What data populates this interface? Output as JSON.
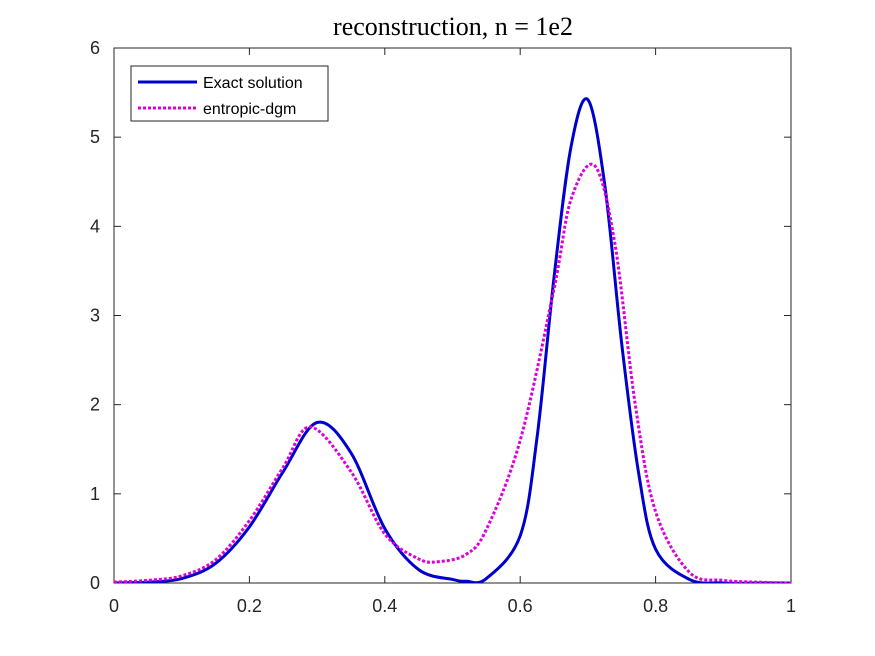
{
  "chart_data": {
    "type": "line",
    "title": "reconstruction, n = 1e2",
    "xlabel": "",
    "ylabel": "",
    "xlim": [
      0,
      1
    ],
    "ylim": [
      0,
      6
    ],
    "x_ticks": [
      0,
      0.2,
      0.4,
      0.6,
      0.8,
      1
    ],
    "x_tick_labels": [
      "0",
      "0.2",
      "0.4",
      "0.6",
      "0.8",
      "1"
    ],
    "y_ticks": [
      0,
      1,
      2,
      3,
      4,
      5,
      6
    ],
    "y_tick_labels": [
      "0",
      "1",
      "2",
      "3",
      "4",
      "5",
      "6"
    ],
    "grid": false,
    "legend_position": "top-left",
    "series": [
      {
        "name": "Exact solution",
        "color": "#0000cd",
        "line_style": "solid",
        "x": [
          0,
          0.05,
          0.1,
          0.15,
          0.2,
          0.25,
          0.3,
          0.35,
          0.4,
          0.45,
          0.5,
          0.52,
          0.55,
          0.6,
          0.625,
          0.65,
          0.675,
          0.7,
          0.725,
          0.75,
          0.775,
          0.8,
          0.85,
          0.9,
          0.95,
          1
        ],
        "y": [
          0.0,
          0.01,
          0.05,
          0.22,
          0.63,
          1.25,
          1.8,
          1.46,
          0.61,
          0.15,
          0.04,
          0.02,
          0.05,
          0.53,
          1.64,
          3.43,
          4.89,
          5.42,
          4.46,
          2.68,
          1.23,
          0.38,
          0.04,
          0.0,
          0.0,
          0.0
        ]
      },
      {
        "name": "entropic-dgm",
        "color": "#dd00dd",
        "line_style": "dotted",
        "x": [
          0,
          0.05,
          0.1,
          0.15,
          0.2,
          0.25,
          0.29,
          0.35,
          0.4,
          0.45,
          0.48,
          0.52,
          0.55,
          0.6,
          0.65,
          0.675,
          0.71,
          0.74,
          0.77,
          0.8,
          0.85,
          0.9,
          0.95,
          1
        ],
        "y": [
          0.01,
          0.03,
          0.08,
          0.26,
          0.7,
          1.3,
          1.75,
          1.25,
          0.55,
          0.27,
          0.24,
          0.32,
          0.6,
          1.6,
          3.3,
          4.3,
          4.68,
          3.8,
          2.0,
          0.8,
          0.12,
          0.03,
          0.01,
          0.0
        ]
      }
    ]
  }
}
